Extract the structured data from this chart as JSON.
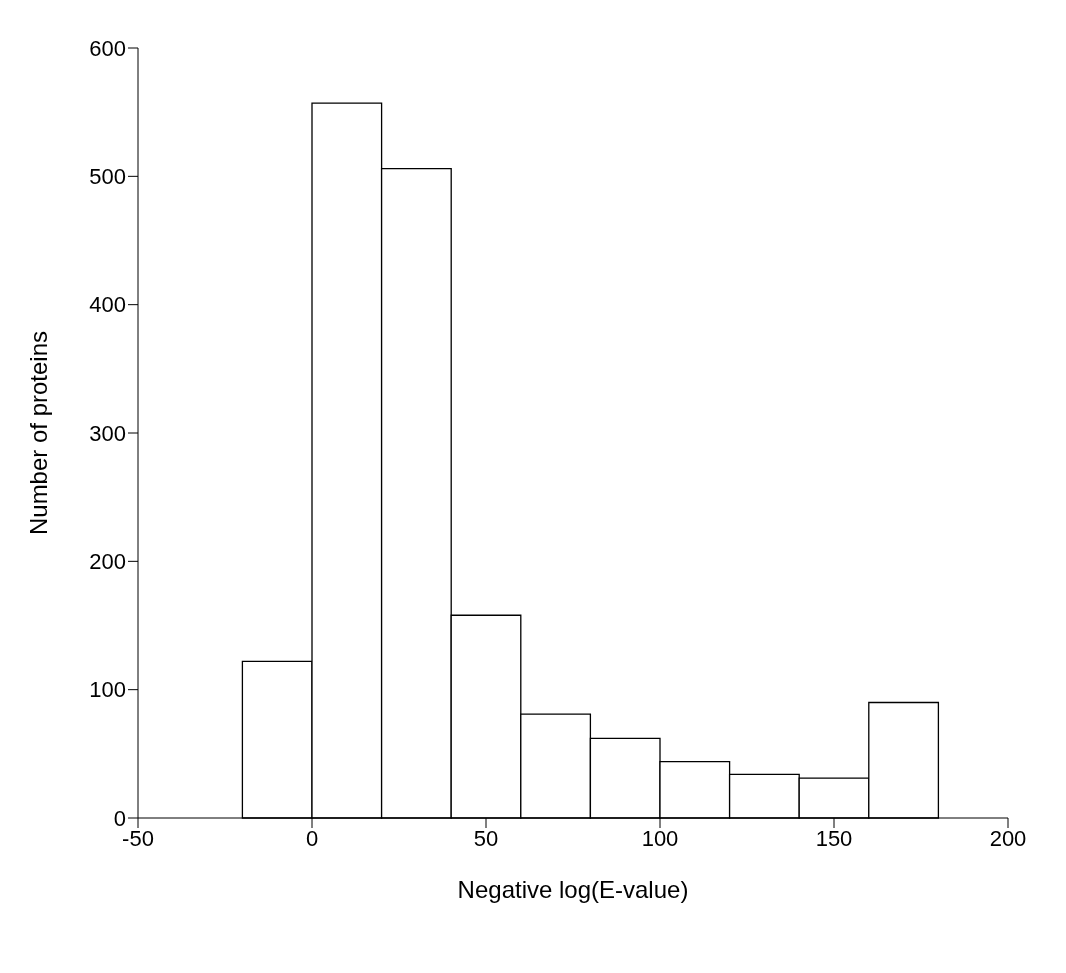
{
  "chart_data": {
    "type": "histogram",
    "xlabel": "Negative log(E-value)",
    "ylabel": "Number of proteins",
    "bins": [
      -20,
      0,
      20,
      40,
      60,
      80,
      100,
      120,
      140,
      160,
      180
    ],
    "values": [
      122,
      557,
      506,
      158,
      81,
      62,
      44,
      34,
      31,
      90
    ],
    "color": "#ffffff",
    "xlim": [
      -50,
      200
    ],
    "xticks": [
      -50,
      0,
      50,
      100,
      150,
      200
    ],
    "ylim": [
      0,
      600
    ],
    "yticks": [
      0,
      100,
      200,
      300,
      400,
      500,
      600
    ],
    "grid": false
  }
}
